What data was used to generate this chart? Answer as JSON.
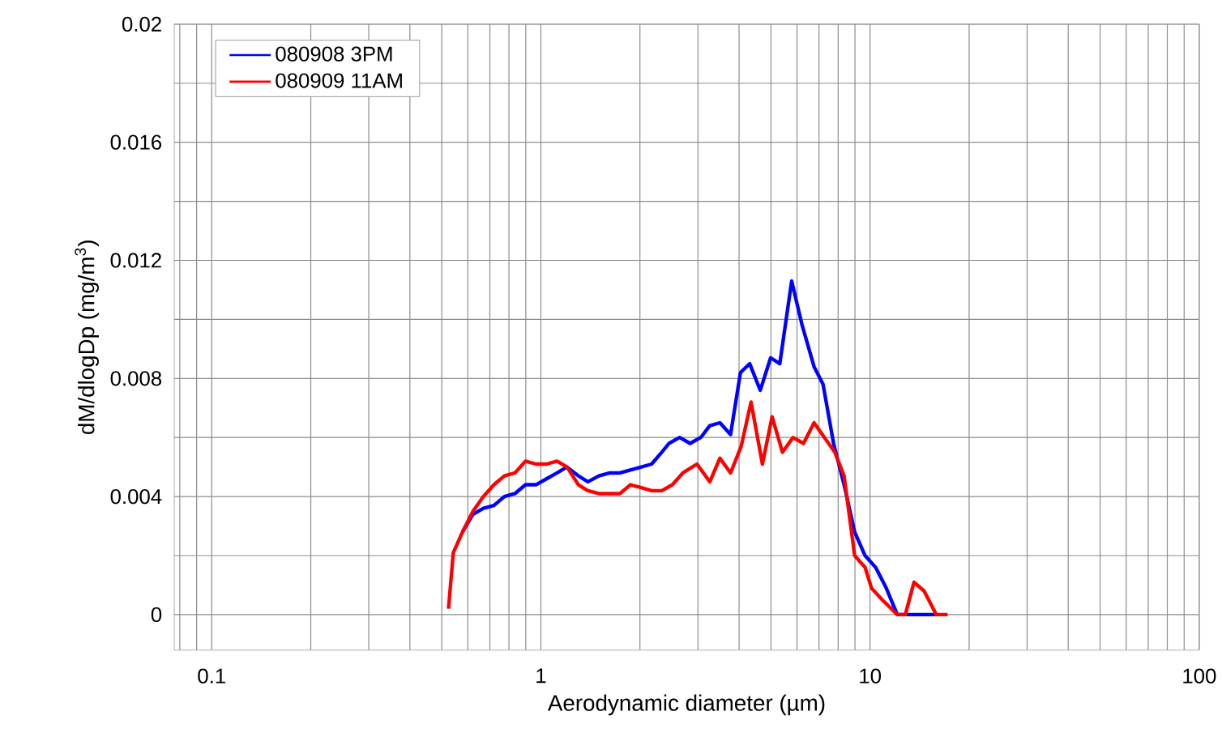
{
  "chart_data": {
    "type": "line",
    "xlabel": "Aerodynamic diameter (µm)",
    "ylabel": "dM/dlogDp (mg/m$^{3}$)",
    "log": "x",
    "grid": true,
    "legend": "top left",
    "line_style": "solid",
    "marker": "none",
    "xlim": [
      0.077,
      100
    ],
    "xticks": [
      0.1,
      1,
      10,
      100
    ],
    "ylim": [
      -0.0012,
      0.02
    ],
    "yticks": [
      0,
      {
        "value": 0.002,
        "label": null
      },
      0.004,
      {
        "value": 0.006,
        "label": null
      },
      0.008,
      {
        "value": 0.01,
        "label": null
      },
      0.012,
      {
        "value": 0.014,
        "label": null
      },
      0.016,
      {
        "value": 0.018,
        "label": null
      },
      0.02
    ],
    "series": [
      {
        "name": "080908 3PM",
        "color": "#0000ff",
        "x": [
          0.578,
          0.622,
          0.669,
          0.72,
          0.775,
          0.834,
          0.898,
          0.966,
          1.04,
          1.12,
          1.2,
          1.3,
          1.39,
          1.5,
          1.62,
          1.74,
          1.87,
          2.02,
          2.17,
          2.33,
          2.45,
          2.64,
          2.84,
          3.06,
          3.26,
          3.5,
          3.77,
          4.04,
          4.31,
          4.64,
          4.99,
          5.32,
          5.78,
          6.22,
          6.76,
          7.2,
          7.75,
          8.34,
          8.98,
          9.66,
          10.4,
          11.2,
          12.1,
          13.6,
          15.8
        ],
        "values": [
          0.0028,
          0.0034,
          0.0036,
          0.0037,
          0.004,
          0.0041,
          0.0044,
          0.0044,
          0.0046,
          0.0048,
          0.005,
          0.0047,
          0.0045,
          0.0047,
          0.0048,
          0.0048,
          0.0049,
          0.005,
          0.0051,
          0.0055,
          0.0058,
          0.006,
          0.0058,
          0.006,
          0.0064,
          0.0065,
          0.0061,
          0.0082,
          0.0085,
          0.0076,
          0.0087,
          0.0085,
          0.0113,
          0.0098,
          0.0084,
          0.0078,
          0.0058,
          0.0044,
          0.0028,
          0.002,
          0.0016,
          0.0009,
          0,
          0,
          0
        ]
      },
      {
        "name": "080909 11AM",
        "color": "#ff0000",
        "x": [
          0.524,
          0.542,
          0.578,
          0.622,
          0.669,
          0.72,
          0.775,
          0.834,
          0.898,
          0.966,
          1.04,
          1.12,
          1.2,
          1.3,
          1.39,
          1.5,
          1.62,
          1.74,
          1.87,
          2.02,
          2.17,
          2.33,
          2.51,
          2.7,
          2.98,
          3.26,
          3.5,
          3.77,
          4.06,
          4.35,
          4.71,
          5.04,
          5.42,
          5.83,
          6.28,
          6.76,
          7.27,
          7.82,
          8.34,
          8.98,
          9.66,
          10.1,
          10.9,
          12.1,
          12.8,
          13.6,
          14.6,
          15.9,
          17.2
        ],
        "values": [
          0.0002,
          0.0021,
          0.0028,
          0.0035,
          0.004,
          0.0044,
          0.0047,
          0.0048,
          0.0052,
          0.0051,
          0.0051,
          0.0052,
          0.005,
          0.0044,
          0.0042,
          0.0041,
          0.0041,
          0.0041,
          0.0044,
          0.0043,
          0.0042,
          0.0042,
          0.0044,
          0.0048,
          0.0051,
          0.0045,
          0.0053,
          0.0048,
          0.0057,
          0.0072,
          0.0051,
          0.0067,
          0.0055,
          0.006,
          0.0058,
          0.0065,
          0.006,
          0.0055,
          0.0047,
          0.002,
          0.0016,
          0.0009,
          0.0005,
          0,
          0,
          0.0011,
          0.0008,
          0,
          0
        ]
      }
    ]
  }
}
